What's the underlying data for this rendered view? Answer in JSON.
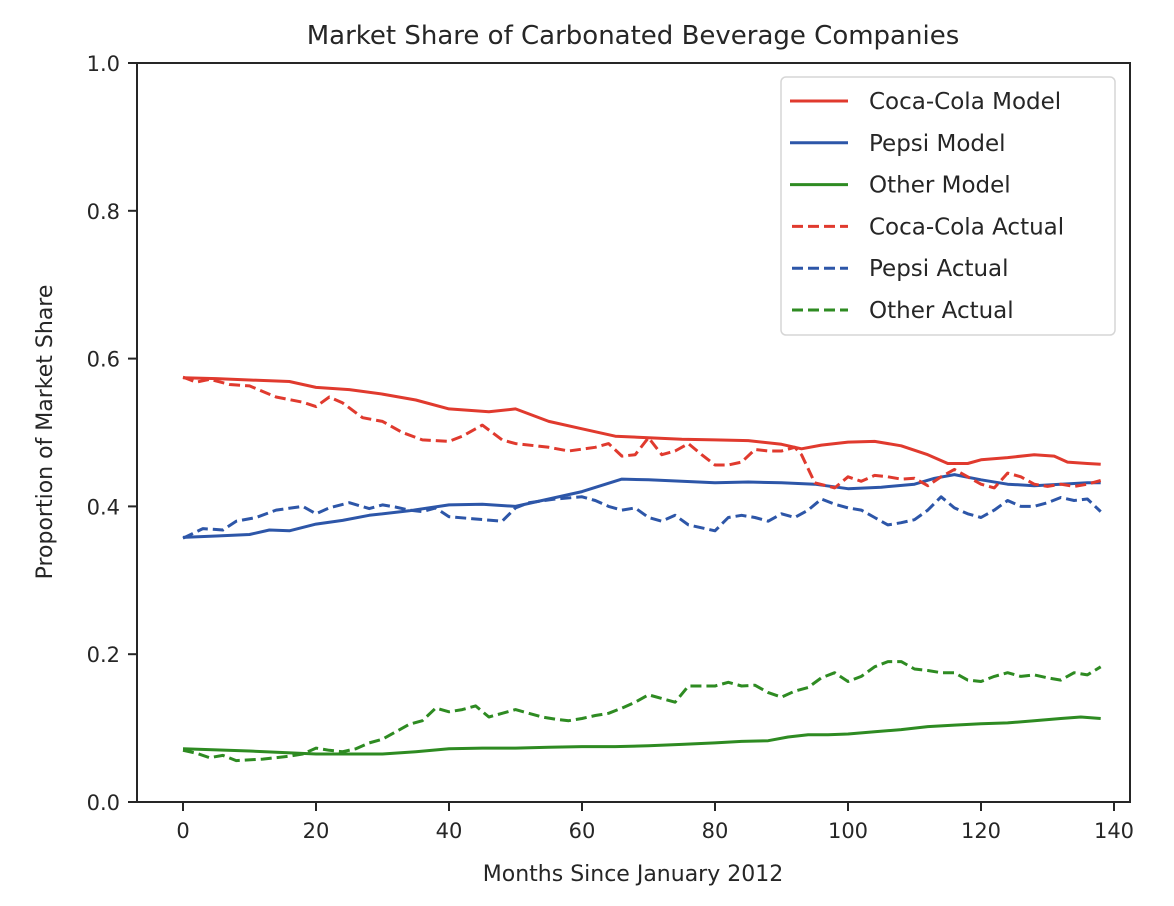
{
  "chart_data": {
    "type": "line",
    "title": "Market Share of Carbonated Beverage Companies",
    "xlabel": "Months Since January 2012",
    "ylabel": "Proportion of Market Share",
    "xlim": [
      -7,
      145
    ],
    "ylim": [
      0.0,
      1.0
    ],
    "xticks": [
      0,
      20,
      40,
      60,
      80,
      100,
      120,
      140
    ],
    "xtick_labels": [
      "0",
      "20",
      "40",
      "60",
      "80",
      "100",
      "120",
      "140"
    ],
    "yticks": [
      0.0,
      0.2,
      0.4,
      0.6,
      0.8,
      1.0
    ],
    "ytick_labels": [
      "0.0",
      "0.2",
      "0.4",
      "0.6",
      "0.8",
      "1.0"
    ],
    "grid": false,
    "legend_position": "top-right",
    "series": [
      {
        "name": "Coca-Cola Model",
        "color": "#e03a2e",
        "style": "solid",
        "x": [
          0,
          5,
          10,
          16,
          20,
          25,
          30,
          35,
          40,
          46,
          50,
          55,
          60,
          65,
          70,
          75,
          80,
          85,
          90,
          93,
          96,
          100,
          104,
          108,
          112,
          115,
          118,
          120,
          124,
          128,
          131,
          133,
          136,
          138
        ],
        "y": [
          0.574,
          0.573,
          0.571,
          0.569,
          0.561,
          0.558,
          0.552,
          0.544,
          0.532,
          0.528,
          0.532,
          0.515,
          0.505,
          0.495,
          0.493,
          0.491,
          0.49,
          0.489,
          0.484,
          0.478,
          0.483,
          0.487,
          0.488,
          0.482,
          0.47,
          0.458,
          0.458,
          0.463,
          0.466,
          0.47,
          0.468,
          0.46,
          0.458,
          0.457
        ]
      },
      {
        "name": "Pepsi Model",
        "color": "#2d56a8",
        "style": "solid",
        "x": [
          0,
          5,
          10,
          13,
          16,
          20,
          24,
          28,
          34,
          40,
          45,
          50,
          55,
          60,
          66,
          70,
          75,
          80,
          85,
          90,
          95,
          100,
          105,
          110,
          113,
          116,
          120,
          124,
          128,
          132,
          136,
          138
        ],
        "y": [
          0.358,
          0.36,
          0.362,
          0.368,
          0.367,
          0.376,
          0.381,
          0.388,
          0.394,
          0.402,
          0.403,
          0.4,
          0.41,
          0.42,
          0.437,
          0.436,
          0.434,
          0.432,
          0.433,
          0.432,
          0.43,
          0.424,
          0.426,
          0.43,
          0.438,
          0.443,
          0.436,
          0.43,
          0.428,
          0.43,
          0.432,
          0.432
        ]
      },
      {
        "name": "Other Model",
        "color": "#2e8b22",
        "style": "solid",
        "x": [
          0,
          10,
          20,
          30,
          35,
          40,
          45,
          50,
          55,
          60,
          65,
          70,
          75,
          80,
          84,
          88,
          91,
          94,
          97,
          100,
          104,
          108,
          112,
          116,
          120,
          124,
          128,
          132,
          135,
          138
        ],
        "y": [
          0.072,
          0.069,
          0.065,
          0.065,
          0.068,
          0.072,
          0.073,
          0.073,
          0.074,
          0.075,
          0.075,
          0.076,
          0.078,
          0.08,
          0.082,
          0.083,
          0.088,
          0.091,
          0.091,
          0.092,
          0.095,
          0.098,
          0.102,
          0.104,
          0.106,
          0.107,
          0.11,
          0.113,
          0.115,
          0.113
        ]
      },
      {
        "name": "Coca-Cola Actual",
        "color": "#e03a2e",
        "style": "dashed",
        "x": [
          0,
          2,
          4,
          7,
          10,
          14,
          18,
          20,
          22,
          24,
          27,
          30,
          33,
          36,
          40,
          42,
          45,
          48,
          50,
          53,
          55,
          58,
          62,
          64,
          66,
          68,
          70,
          72,
          74,
          76,
          78,
          80,
          82,
          84,
          86,
          88,
          90,
          92,
          93,
          95,
          98,
          100,
          102,
          104,
          106,
          108,
          110,
          112,
          114,
          116,
          118,
          120,
          122,
          124,
          126,
          128,
          130,
          132,
          134,
          136,
          138
        ],
        "y": [
          0.575,
          0.568,
          0.572,
          0.565,
          0.563,
          0.548,
          0.541,
          0.535,
          0.548,
          0.54,
          0.52,
          0.515,
          0.5,
          0.49,
          0.488,
          0.495,
          0.51,
          0.49,
          0.485,
          0.482,
          0.48,
          0.475,
          0.48,
          0.485,
          0.468,
          0.47,
          0.493,
          0.47,
          0.475,
          0.485,
          0.47,
          0.456,
          0.456,
          0.46,
          0.477,
          0.475,
          0.475,
          0.48,
          0.47,
          0.432,
          0.425,
          0.44,
          0.434,
          0.442,
          0.44,
          0.437,
          0.438,
          0.428,
          0.44,
          0.45,
          0.44,
          0.43,
          0.425,
          0.445,
          0.44,
          0.43,
          0.427,
          0.43,
          0.427,
          0.43,
          0.435
        ]
      },
      {
        "name": "Pepsi Actual",
        "color": "#2d56a8",
        "style": "dashed",
        "x": [
          0,
          3,
          6,
          8,
          11,
          14,
          18,
          20,
          22,
          25,
          28,
          30,
          32,
          34,
          36,
          38,
          40,
          44,
          48,
          50,
          52,
          56,
          60,
          62,
          64,
          66,
          68,
          70,
          72,
          74,
          76,
          80,
          82,
          84,
          86,
          88,
          90,
          92,
          94,
          96,
          98,
          100,
          102,
          104,
          106,
          108,
          110,
          112,
          114,
          116,
          118,
          120,
          122,
          124,
          126,
          128,
          130,
          132,
          134,
          136,
          138
        ],
        "y": [
          0.357,
          0.37,
          0.368,
          0.38,
          0.385,
          0.395,
          0.4,
          0.39,
          0.398,
          0.405,
          0.397,
          0.402,
          0.399,
          0.395,
          0.393,
          0.398,
          0.386,
          0.383,
          0.38,
          0.398,
          0.405,
          0.41,
          0.413,
          0.408,
          0.4,
          0.395,
          0.398,
          0.385,
          0.38,
          0.388,
          0.375,
          0.367,
          0.385,
          0.388,
          0.385,
          0.38,
          0.39,
          0.385,
          0.395,
          0.41,
          0.403,
          0.398,
          0.395,
          0.385,
          0.375,
          0.378,
          0.382,
          0.395,
          0.413,
          0.398,
          0.39,
          0.385,
          0.395,
          0.408,
          0.4,
          0.4,
          0.405,
          0.412,
          0.408,
          0.41,
          0.393
        ]
      },
      {
        "name": "Other Actual",
        "color": "#2e8b22",
        "style": "dashed",
        "x": [
          0,
          2,
          4,
          6,
          8,
          12,
          16,
          18,
          20,
          22,
          24,
          26,
          28,
          30,
          32,
          34,
          36,
          38,
          40,
          42,
          44,
          46,
          48,
          50,
          52,
          54,
          56,
          58,
          60,
          62,
          64,
          66,
          68,
          70,
          72,
          74,
          76,
          78,
          80,
          82,
          84,
          86,
          88,
          90,
          92,
          94,
          96,
          98,
          100,
          102,
          104,
          106,
          108,
          110,
          112,
          114,
          116,
          118,
          120,
          122,
          124,
          126,
          128,
          130,
          132,
          134,
          136,
          138
        ],
        "y": [
          0.07,
          0.066,
          0.06,
          0.063,
          0.056,
          0.058,
          0.062,
          0.065,
          0.073,
          0.07,
          0.068,
          0.072,
          0.08,
          0.085,
          0.095,
          0.105,
          0.11,
          0.127,
          0.122,
          0.125,
          0.13,
          0.115,
          0.12,
          0.125,
          0.12,
          0.115,
          0.112,
          0.11,
          0.113,
          0.117,
          0.12,
          0.127,
          0.135,
          0.145,
          0.14,
          0.135,
          0.157,
          0.157,
          0.157,
          0.162,
          0.157,
          0.158,
          0.148,
          0.142,
          0.15,
          0.155,
          0.168,
          0.175,
          0.163,
          0.17,
          0.183,
          0.19,
          0.19,
          0.18,
          0.178,
          0.175,
          0.175,
          0.165,
          0.163,
          0.17,
          0.175,
          0.17,
          0.172,
          0.168,
          0.165,
          0.175,
          0.172,
          0.183
        ]
      }
    ]
  }
}
